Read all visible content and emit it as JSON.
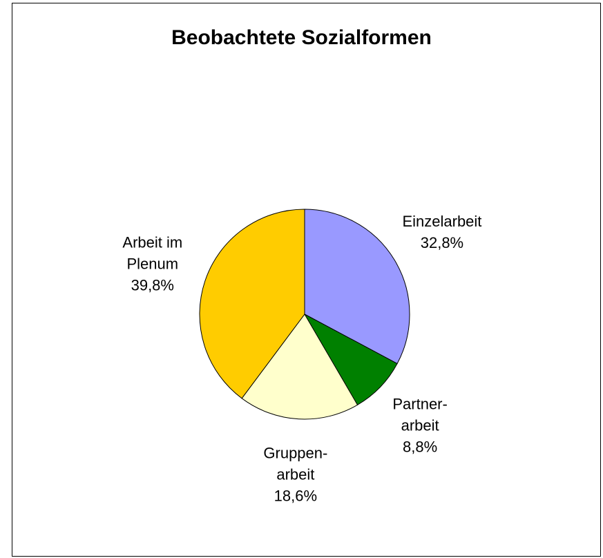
{
  "chart_data": {
    "type": "pie",
    "title": "Beobachtete Sozialformen",
    "categories": [
      "Einzelarbeit",
      "Partner-\narbeit",
      "Gruppen-\narbeit",
      "Arbeit im\nPlenum"
    ],
    "values": [
      32.8,
      8.8,
      18.6,
      39.8
    ],
    "value_labels": [
      "32,8%",
      "8,8%",
      "18,6%",
      "39,8%"
    ],
    "colors": [
      "#9999ff",
      "#008000",
      "#ffffcc",
      "#ffcc00"
    ]
  }
}
